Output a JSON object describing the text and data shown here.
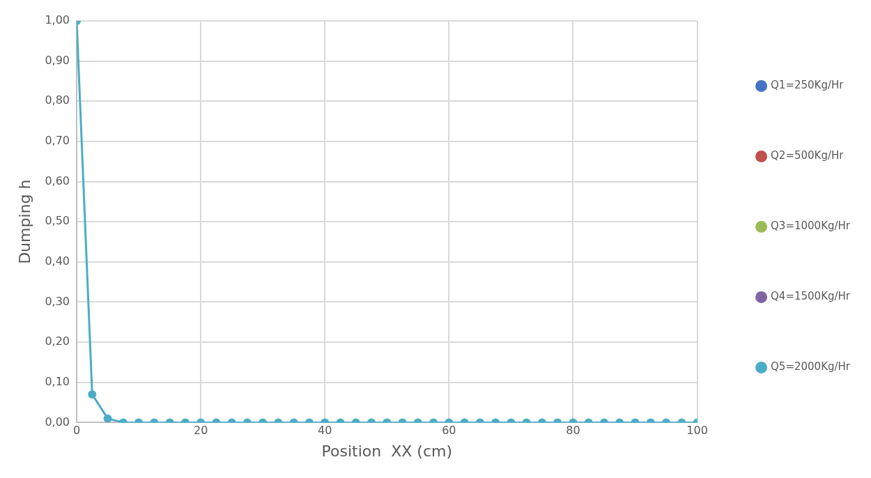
{
  "chart_data": {
    "type": "line",
    "xlabel": "Position  XX (cm)",
    "ylabel": "Dumping h",
    "x": [
      0,
      2.5,
      5,
      7.5,
      10,
      12.5,
      15,
      17.5,
      20,
      22.5,
      25,
      27.5,
      30,
      32.5,
      35,
      37.5,
      40,
      42.5,
      45,
      47.5,
      50,
      52.5,
      55,
      57.5,
      60,
      62.5,
      65,
      67.5,
      70,
      72.5,
      75,
      77.5,
      80,
      82.5,
      85,
      87.5,
      90,
      92.5,
      95,
      97.5,
      100
    ],
    "series": [
      {
        "name": "Q1=250Kg/Hr",
        "color": "#4472c4",
        "values": [
          null,
          null,
          null,
          null,
          null,
          null,
          null,
          null,
          null,
          null,
          null,
          null,
          null,
          null,
          null,
          null,
          null,
          null,
          null,
          null,
          null,
          null,
          null,
          null,
          null,
          null,
          null,
          null,
          null,
          null,
          null,
          null,
          null,
          null,
          null,
          null,
          null,
          null,
          null,
          null,
          null
        ]
      },
      {
        "name": "Q2=500Kg/Hr",
        "color": "#c0504d",
        "values": [
          null,
          null,
          null,
          null,
          null,
          null,
          null,
          null,
          null,
          null,
          null,
          null,
          null,
          null,
          null,
          null,
          null,
          null,
          null,
          null,
          null,
          null,
          null,
          null,
          null,
          null,
          null,
          null,
          null,
          null,
          null,
          null,
          null,
          null,
          null,
          null,
          null,
          null,
          null,
          null,
          null
        ]
      },
      {
        "name": "Q3=1000Kg/Hr",
        "color": "#9bbb59",
        "values": [
          null,
          null,
          null,
          null,
          null,
          null,
          null,
          null,
          null,
          null,
          null,
          null,
          null,
          null,
          null,
          null,
          null,
          null,
          null,
          null,
          null,
          null,
          null,
          null,
          null,
          null,
          null,
          null,
          null,
          null,
          null,
          null,
          null,
          null,
          null,
          null,
          null,
          null,
          null,
          null,
          null
        ]
      },
      {
        "name": "Q4=1500Kg/Hr",
        "color": "#8064a2",
        "values": [
          null,
          null,
          null,
          null,
          null,
          null,
          null,
          null,
          null,
          null,
          null,
          null,
          null,
          null,
          null,
          null,
          null,
          null,
          null,
          null,
          null,
          null,
          null,
          null,
          null,
          null,
          null,
          null,
          null,
          null,
          null,
          null,
          null,
          null,
          null,
          null,
          null,
          null,
          null,
          null,
          null
        ]
      },
      {
        "name": "Q5=2000Kg/Hr",
        "color": "#4bacc6",
        "values": [
          1,
          0.07,
          0.01,
          0,
          0,
          0,
          0,
          0,
          0,
          0,
          0,
          0,
          0,
          0,
          0,
          0,
          0,
          0,
          0,
          0,
          0,
          0,
          0,
          0,
          0,
          0,
          0,
          0,
          0,
          0,
          0,
          0,
          0,
          0,
          0,
          0,
          0,
          0,
          0,
          0,
          0
        ]
      }
    ],
    "xlim": [
      0,
      100
    ],
    "xticks": [
      0,
      20,
      40,
      60,
      80,
      100
    ],
    "ylim": [
      0,
      1
    ],
    "yticks": [
      {
        "value": 0,
        "label": "0,00"
      },
      {
        "value": 0.1,
        "label": "0,10"
      },
      {
        "value": 0.2,
        "label": "0,20"
      },
      {
        "value": 0.3,
        "label": "0,30"
      },
      {
        "value": 0.4,
        "label": "0,40"
      },
      {
        "value": 0.5,
        "label": "0,50"
      },
      {
        "value": 0.6,
        "label": "0,60"
      },
      {
        "value": 0.7,
        "label": "0,70"
      },
      {
        "value": 0.8,
        "label": "0,80"
      },
      {
        "value": 0.9,
        "label": "0,90"
      },
      {
        "value": 1,
        "label": "1,00"
      }
    ],
    "grid": true,
    "legend": "right",
    "marker": "circle",
    "line_style": "solid"
  }
}
